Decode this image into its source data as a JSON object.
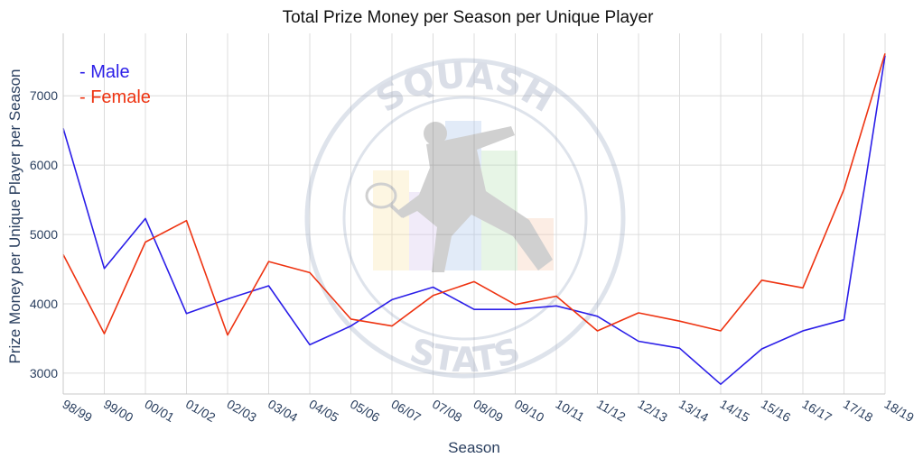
{
  "chart_data": {
    "type": "line",
    "title": "Total Prize Money per Season per Unique Player",
    "xlabel": "Season",
    "ylabel": "Prize Money per Unique Player per Season",
    "categories": [
      "98/99",
      "99/00",
      "00/01",
      "01/02",
      "02/03",
      "03/04",
      "04/05",
      "05/06",
      "06/07",
      "07/08",
      "08/09",
      "09/10",
      "10/11",
      "11/12",
      "12/13",
      "13/14",
      "14/15",
      "15/16",
      "16/17",
      "17/18",
      "18/19"
    ],
    "yticks": [
      3000,
      4000,
      5000,
      6000,
      7000
    ],
    "ylim": [
      2700,
      7900
    ],
    "grid": true,
    "legend_position": "top-left",
    "series": [
      {
        "name": "Male",
        "legend_label": "- Male",
        "color": "#2b1ee8",
        "values": [
          6530,
          4510,
          5230,
          3860,
          4070,
          4260,
          3410,
          3680,
          4060,
          4240,
          3920,
          3920,
          3970,
          3820,
          3460,
          3360,
          2840,
          3350,
          3610,
          3770,
          7580
        ]
      },
      {
        "name": "Female",
        "legend_label": "- Female",
        "color": "#ee3311",
        "values": [
          4710,
          3570,
          4890,
          5200,
          3550,
          4610,
          4450,
          3780,
          3680,
          4120,
          4320,
          3990,
          4110,
          3610,
          3870,
          3750,
          3610,
          4340,
          4230,
          5650,
          7610
        ]
      }
    ],
    "watermark": {
      "top_text": "SQUASH",
      "bottom_text": "STATS"
    }
  }
}
